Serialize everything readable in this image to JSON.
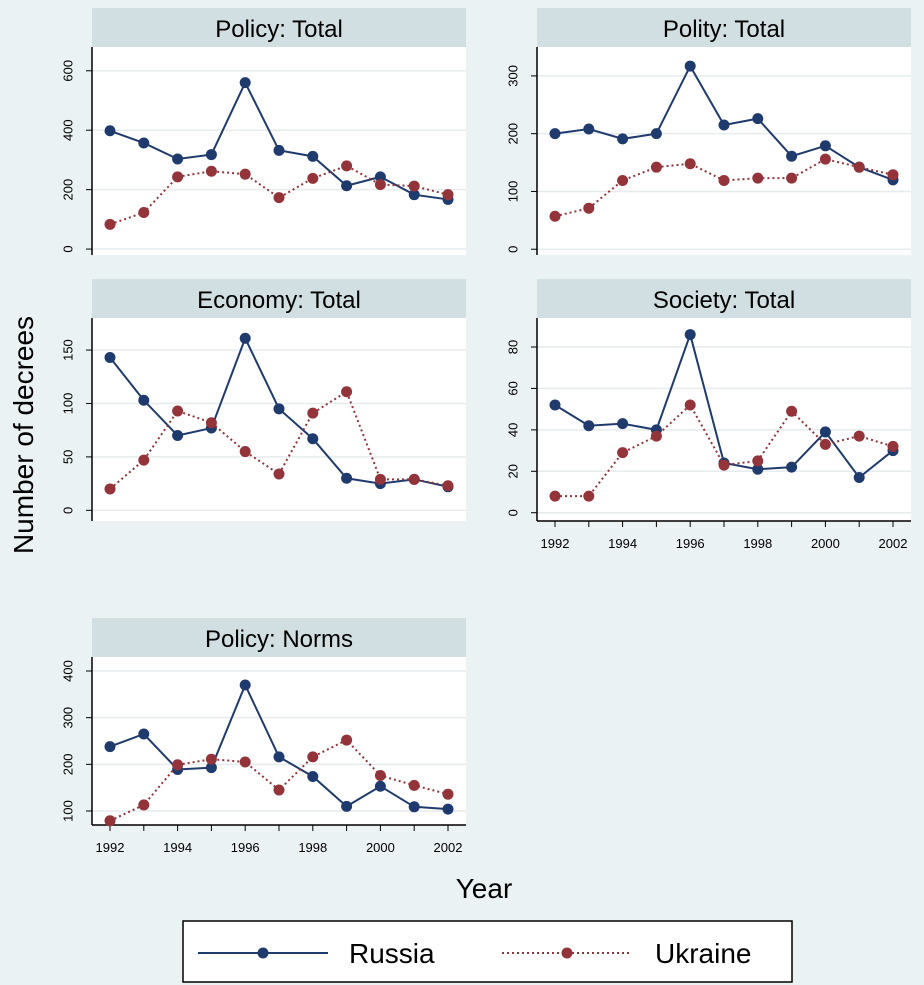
{
  "figure": {
    "ylabel": "Number of decrees",
    "xlabel": "Year",
    "legend": [
      {
        "name": "Russia",
        "color": "#1f3b6e",
        "style": "solid"
      },
      {
        "name": "Ukraine",
        "color": "#93333a",
        "style": "dotted"
      }
    ]
  },
  "chart_data": [
    {
      "type": "line",
      "title": "Policy: Total",
      "x": [
        1992,
        1993,
        1994,
        1995,
        1996,
        1997,
        1998,
        1999,
        2000,
        2001,
        2002
      ],
      "ylim": [
        -20,
        680
      ],
      "yticks": [
        0,
        200,
        400,
        600
      ],
      "series": [
        {
          "name": "Russia",
          "values": [
            398,
            357,
            303,
            318,
            560,
            332,
            312,
            213,
            243,
            183,
            167
          ]
        },
        {
          "name": "Ukraine",
          "values": [
            83,
            123,
            243,
            262,
            252,
            173,
            238,
            280,
            217,
            212,
            183
          ]
        }
      ],
      "show_xticks": false
    },
    {
      "type": "line",
      "title": "Polity: Total",
      "x": [
        1992,
        1993,
        1994,
        1995,
        1996,
        1997,
        1998,
        1999,
        2000,
        2001,
        2002
      ],
      "ylim": [
        -10,
        350
      ],
      "yticks": [
        0,
        100,
        200,
        300
      ],
      "series": [
        {
          "name": "Russia",
          "values": [
            200,
            208,
            191,
            200,
            317,
            215,
            226,
            161,
            179,
            142,
            120
          ]
        },
        {
          "name": "Ukraine",
          "values": [
            57,
            71,
            119,
            142,
            148,
            119,
            123,
            123,
            156,
            142,
            129
          ]
        }
      ],
      "show_xticks": false
    },
    {
      "type": "line",
      "title": "Economy: Total",
      "x": [
        1992,
        1993,
        1994,
        1995,
        1996,
        1997,
        1998,
        1999,
        2000,
        2001,
        2002
      ],
      "ylim": [
        -10,
        180
      ],
      "yticks": [
        0,
        50,
        100,
        150
      ],
      "series": [
        {
          "name": "Russia",
          "values": [
            143,
            103,
            70,
            77,
            161,
            95,
            67,
            30,
            25,
            29,
            22
          ]
        },
        {
          "name": "Ukraine",
          "values": [
            20,
            47,
            93,
            82,
            55,
            34,
            91,
            111,
            29,
            29,
            23
          ]
        }
      ],
      "show_xticks": false
    },
    {
      "type": "line",
      "title": "Society: Total",
      "x": [
        1992,
        1993,
        1994,
        1995,
        1996,
        1997,
        1998,
        1999,
        2000,
        2001,
        2002
      ],
      "ylim": [
        -4,
        94
      ],
      "yticks": [
        0,
        20,
        40,
        60,
        80
      ],
      "xtick_labels": [
        "1992",
        "1994",
        "1996",
        "1998",
        "2000",
        "2002"
      ],
      "series": [
        {
          "name": "Russia",
          "values": [
            52,
            42,
            43,
            40,
            86,
            24,
            21,
            22,
            39,
            17,
            30
          ]
        },
        {
          "name": "Ukraine",
          "values": [
            8,
            8,
            29,
            37,
            52,
            23,
            25,
            49,
            33,
            37,
            32
          ]
        }
      ],
      "show_xticks": true
    },
    {
      "type": "line",
      "title": "Policy: Norms",
      "x": [
        1992,
        1993,
        1994,
        1995,
        1996,
        1997,
        1998,
        1999,
        2000,
        2001,
        2002
      ],
      "ylim": [
        70,
        430
      ],
      "yticks": [
        100,
        200,
        300,
        400
      ],
      "xtick_labels": [
        "1992",
        "1994",
        "1996",
        "1998",
        "2000",
        "2002"
      ],
      "series": [
        {
          "name": "Russia",
          "values": [
            238,
            265,
            189,
            193,
            370,
            216,
            174,
            110,
            153,
            109,
            104
          ]
        },
        {
          "name": "Ukraine",
          "values": [
            79,
            113,
            199,
            211,
            205,
            145,
            216,
            252,
            176,
            155,
            136
          ]
        }
      ],
      "show_xticks": true
    }
  ]
}
